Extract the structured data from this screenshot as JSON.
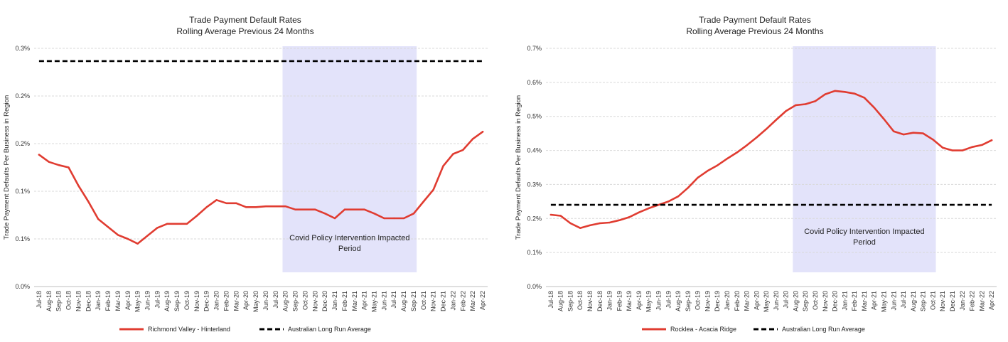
{
  "chart_data": [
    {
      "type": "line",
      "title": "Trade Payment Default Rates",
      "subtitle": "Rolling Average Previous 24 Months",
      "xlabel": "",
      "ylabel": "Trade Payment Defaults Per Business in Region",
      "ylim": [
        0,
        0.3
      ],
      "yticks": [
        "0.0%",
        "0.1%",
        "0.1%",
        "0.2%",
        "0.2%",
        "0.3%"
      ],
      "ytick_values": [
        0,
        0.06,
        0.12,
        0.18,
        0.24,
        0.3
      ],
      "grid": true,
      "legend_position": "bottom",
      "categories": [
        "Jul-18",
        "Aug-18",
        "Sep-18",
        "Oct-18",
        "Nov-18",
        "Dec-18",
        "Jan-19",
        "Feb-19",
        "Mar-19",
        "Apr-19",
        "May-19",
        "Jun-19",
        "Jul-19",
        "Aug-19",
        "Sep-19",
        "Oct-19",
        "Nov-19",
        "Dec-19",
        "Jan-20",
        "Feb-20",
        "Mar-20",
        "Apr-20",
        "May-20",
        "Jun-20",
        "Jul-20",
        "Aug-20",
        "Sep-20",
        "Oct-20",
        "Nov-20",
        "Dec-20",
        "Jan-21",
        "Feb-21",
        "Mar-21",
        "Apr-21",
        "May-21",
        "Jun-21",
        "Jul-21",
        "Aug-21",
        "Sep-21",
        "Oct-21",
        "Nov-21",
        "Dec-21",
        "Jan-22",
        "Feb-22",
        "Mar-22",
        "Apr-22"
      ],
      "series": [
        {
          "name": "Richmond Valley - Hinterland",
          "color": "#e03c31",
          "style": "solid",
          "values": [
            0.166,
            0.157,
            0.153,
            0.15,
            0.127,
            0.107,
            0.085,
            0.075,
            0.065,
            0.06,
            0.054,
            0.064,
            0.074,
            0.079,
            0.079,
            0.079,
            0.089,
            0.1,
            0.109,
            0.105,
            0.105,
            0.1,
            0.1,
            0.101,
            0.101,
            0.101,
            0.097,
            0.097,
            0.097,
            0.092,
            0.086,
            0.097,
            0.097,
            0.097,
            0.092,
            0.086,
            0.086,
            0.086,
            0.092,
            0.107,
            0.122,
            0.152,
            0.167,
            0.172,
            0.186,
            0.195
          ]
        },
        {
          "name": "Australian Long Run Average",
          "color": "#000000",
          "style": "dashed",
          "values": [
            0.284,
            0.284,
            0.284,
            0.284,
            0.284,
            0.284,
            0.284,
            0.284,
            0.284,
            0.284,
            0.284,
            0.284,
            0.284,
            0.284,
            0.284,
            0.284,
            0.284,
            0.284,
            0.284,
            0.284,
            0.284,
            0.284,
            0.284,
            0.284,
            0.284,
            0.284,
            0.284,
            0.284,
            0.284,
            0.284,
            0.284,
            0.284,
            0.284,
            0.284,
            0.284,
            0.284,
            0.284,
            0.284,
            0.284,
            0.284,
            0.284,
            0.284,
            0.284,
            0.284,
            0.284,
            0.284
          ]
        }
      ],
      "shaded_region": {
        "start": "Aug-20",
        "end": "Sep-21",
        "color": "#e3e3fa",
        "label_line1": "Covid Policy Intervention Impacted",
        "label_line2": "Period",
        "label_y": 0.058
      }
    },
    {
      "type": "line",
      "title": "Trade Payment Default Rates",
      "subtitle": "Rolling Average Previous 24 Months",
      "xlabel": "",
      "ylabel": "Trade Payment Defaults Per Business in Region",
      "ylim": [
        0,
        0.7
      ],
      "yticks": [
        "0.0%",
        "0.1%",
        "0.2%",
        "0.3%",
        "0.4%",
        "0.5%",
        "0.6%",
        "0.7%"
      ],
      "ytick_values": [
        0,
        0.1,
        0.2,
        0.3,
        0.4,
        0.5,
        0.6,
        0.7
      ],
      "grid": true,
      "legend_position": "bottom",
      "categories": [
        "Jul-18",
        "Aug-18",
        "Sep-18",
        "Oct-18",
        "Nov-18",
        "Dec-18",
        "Jan-19",
        "Feb-19",
        "Mar-19",
        "Apr-19",
        "May-19",
        "Jun-19",
        "Jul-19",
        "Aug-19",
        "Sep-19",
        "Oct-19",
        "Nov-19",
        "Dec-19",
        "Jan-20",
        "Feb-20",
        "Mar-20",
        "Apr-20",
        "May-20",
        "Jun-20",
        "Jul-20",
        "Aug-20",
        "Sep-20",
        "Oct-20",
        "Nov-20",
        "Dec-20",
        "Jan-21",
        "Feb-21",
        "Mar-21",
        "Apr-21",
        "May-21",
        "Jun-21",
        "Jul-21",
        "Aug-21",
        "Sep-21",
        "Oct-21",
        "Nov-21",
        "Dec-21",
        "Jan-22",
        "Feb-22",
        "Mar-22",
        "Apr-22"
      ],
      "series": [
        {
          "name": "Rocklea - Acacia Ridge",
          "color": "#e03c31",
          "style": "solid",
          "values": [
            0.211,
            0.208,
            0.186,
            0.172,
            0.18,
            0.186,
            0.188,
            0.195,
            0.204,
            0.218,
            0.23,
            0.24,
            0.25,
            0.265,
            0.29,
            0.32,
            0.34,
            0.356,
            0.376,
            0.394,
            0.415,
            0.438,
            0.463,
            0.49,
            0.516,
            0.533,
            0.536,
            0.545,
            0.565,
            0.575,
            0.572,
            0.567,
            0.555,
            0.526,
            0.492,
            0.456,
            0.447,
            0.452,
            0.45,
            0.432,
            0.408,
            0.4,
            0.4,
            0.41,
            0.416,
            0.43
          ]
        },
        {
          "name": "Australian Long Run Average",
          "color": "#000000",
          "style": "dashed",
          "values": [
            0.24,
            0.24,
            0.24,
            0.24,
            0.24,
            0.24,
            0.24,
            0.24,
            0.24,
            0.24,
            0.24,
            0.24,
            0.24,
            0.24,
            0.24,
            0.24,
            0.24,
            0.24,
            0.24,
            0.24,
            0.24,
            0.24,
            0.24,
            0.24,
            0.24,
            0.24,
            0.24,
            0.24,
            0.24,
            0.24,
            0.24,
            0.24,
            0.24,
            0.24,
            0.24,
            0.24,
            0.24,
            0.24,
            0.24,
            0.24,
            0.24,
            0.24,
            0.24,
            0.24,
            0.24,
            0.24
          ]
        }
      ],
      "shaded_region": {
        "start": "Aug-20",
        "end": "Oct-21",
        "color": "#e3e3fa",
        "label_line1": "Covid Policy Intervention Impacted",
        "label_line2": "Period",
        "label_y": 0.155
      }
    }
  ]
}
